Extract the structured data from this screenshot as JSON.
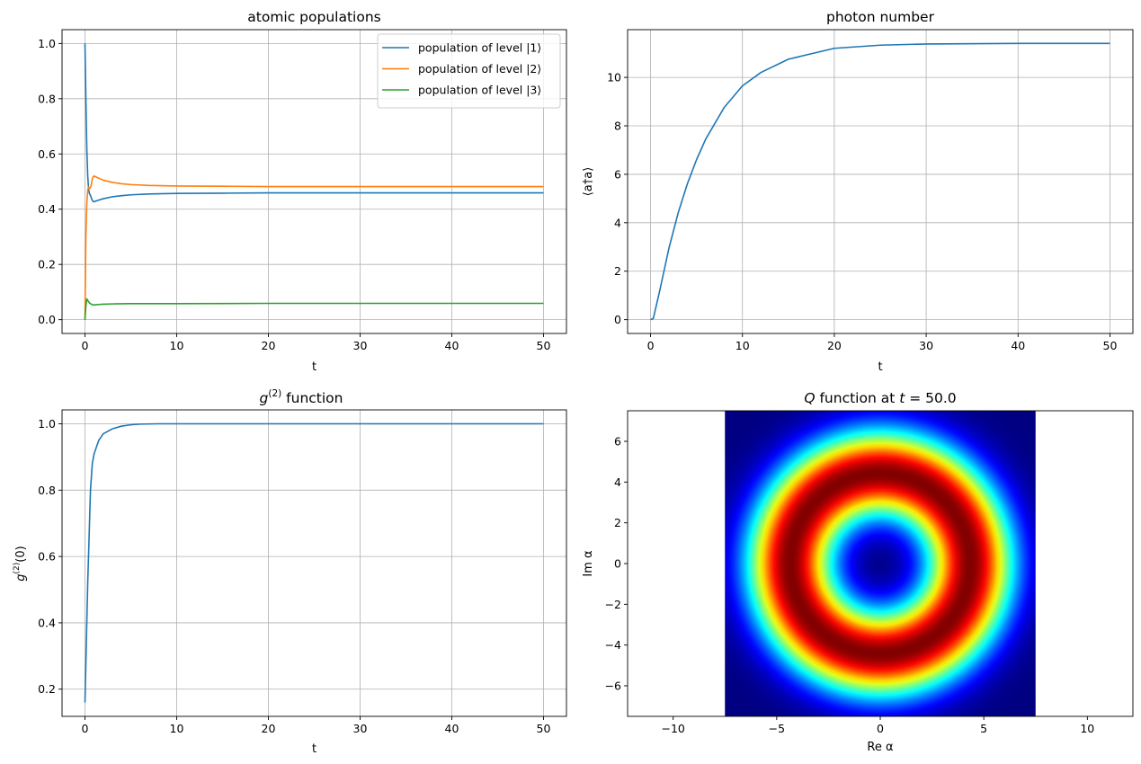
{
  "chart_data": [
    {
      "type": "line",
      "title": "atomic populations",
      "xlabel": "t",
      "ylabel": "",
      "xlim": [
        -2.5,
        52.5
      ],
      "ylim": [
        -0.05,
        1.05
      ],
      "xticks": [
        0,
        10,
        20,
        30,
        40,
        50
      ],
      "xtick_labels": [
        "0",
        "10",
        "20",
        "30",
        "40",
        "50"
      ],
      "yticks": [
        0.0,
        0.2,
        0.4,
        0.6,
        0.8,
        1.0
      ],
      "ytick_labels": [
        "0.0",
        "0.2",
        "0.4",
        "0.6",
        "0.8",
        "1.0"
      ],
      "grid": true,
      "legend_position": "top-right",
      "series": [
        {
          "name": "population of level |1⟩",
          "color": "#1f77b4",
          "x": [
            0,
            0.1,
            0.2,
            0.3,
            0.4,
            0.5,
            0.6,
            0.7,
            0.8,
            0.9,
            1.0,
            1.5,
            2,
            3,
            4,
            5,
            7,
            10,
            15,
            20,
            30,
            40,
            50
          ],
          "y": [
            1.0,
            0.8,
            0.62,
            0.52,
            0.47,
            0.455,
            0.45,
            0.44,
            0.432,
            0.428,
            0.427,
            0.433,
            0.438,
            0.445,
            0.449,
            0.452,
            0.455,
            0.457,
            0.458,
            0.459,
            0.459,
            0.459,
            0.459
          ]
        },
        {
          "name": "population of level |2⟩",
          "color": "#ff7f0e",
          "x": [
            0,
            0.05,
            0.1,
            0.2,
            0.3,
            0.4,
            0.5,
            0.6,
            0.7,
            0.8,
            0.9,
            1.0,
            1.5,
            2,
            3,
            4,
            5,
            7,
            10,
            15,
            20,
            30,
            40,
            50
          ],
          "y": [
            0.0,
            0.15,
            0.3,
            0.42,
            0.47,
            0.48,
            0.475,
            0.478,
            0.49,
            0.51,
            0.518,
            0.52,
            0.512,
            0.505,
            0.497,
            0.492,
            0.489,
            0.486,
            0.484,
            0.483,
            0.482,
            0.482,
            0.482,
            0.482
          ]
        },
        {
          "name": "population of level |3⟩",
          "color": "#2ca02c",
          "x": [
            0,
            0.1,
            0.2,
            0.3,
            0.5,
            0.7,
            0.9,
            1.2,
            1.5,
            2,
            3,
            5,
            10,
            20,
            30,
            40,
            50
          ],
          "y": [
            0.0,
            0.05,
            0.075,
            0.07,
            0.06,
            0.056,
            0.053,
            0.054,
            0.055,
            0.056,
            0.057,
            0.058,
            0.058,
            0.059,
            0.059,
            0.059,
            0.059
          ]
        }
      ]
    },
    {
      "type": "line",
      "title": "photon number",
      "xlabel": "t",
      "ylabel": "⟨a†a⟩",
      "xlim": [
        -2.5,
        52.5
      ],
      "ylim": [
        -0.57,
        11.97
      ],
      "xticks": [
        0,
        10,
        20,
        30,
        40,
        50
      ],
      "xtick_labels": [
        "0",
        "10",
        "20",
        "30",
        "40",
        "50"
      ],
      "yticks": [
        0,
        2,
        4,
        6,
        8,
        10
      ],
      "ytick_labels": [
        "0",
        "2",
        "4",
        "6",
        "8",
        "10"
      ],
      "grid": true,
      "series": [
        {
          "name": "⟨a†a⟩",
          "color": "#1f77b4",
          "x": [
            0,
            0.3,
            1,
            2,
            3,
            4,
            5,
            6,
            8,
            10,
            12,
            15,
            20,
            25,
            30,
            40,
            50
          ],
          "y": [
            0.0,
            0.05,
            1.2,
            2.95,
            4.4,
            5.6,
            6.6,
            7.45,
            8.75,
            9.65,
            10.2,
            10.75,
            11.2,
            11.33,
            11.38,
            11.4,
            11.4
          ]
        }
      ]
    },
    {
      "type": "line",
      "title": "g⁽²⁾ function",
      "xlabel": "t",
      "ylabel": "g⁽²⁾(0)",
      "xlim": [
        -2.5,
        52.5
      ],
      "ylim": [
        0.118,
        1.042
      ],
      "xticks": [
        0,
        10,
        20,
        30,
        40,
        50
      ],
      "xtick_labels": [
        "0",
        "10",
        "20",
        "30",
        "40",
        "50"
      ],
      "yticks": [
        0.2,
        0.4,
        0.6,
        0.8,
        1.0
      ],
      "ytick_labels": [
        "0.2",
        "0.4",
        "0.6",
        "0.8",
        "1.0"
      ],
      "grid": true,
      "series": [
        {
          "name": "g⁽²⁾(0)",
          "color": "#1f77b4",
          "x": [
            0,
            0.3,
            0.6,
            0.8,
            1.0,
            1.5,
            2,
            3,
            4,
            5,
            6,
            8,
            10,
            20,
            30,
            40,
            50
          ],
          "y": [
            0.16,
            0.52,
            0.8,
            0.88,
            0.91,
            0.95,
            0.97,
            0.985,
            0.993,
            0.997,
            0.999,
            1.0,
            1.0,
            1.0,
            1.0,
            1.0,
            1.0
          ]
        }
      ]
    },
    {
      "type": "heatmap",
      "title": "Q function at t = 50.0",
      "title_parts": {
        "Q": "Q",
        "rest": " function at ",
        "t": "t",
        "eq": " = 50.0"
      },
      "xlabel": "Re α",
      "ylabel": "Im α",
      "xlim": [
        -12.2,
        12.2
      ],
      "ylim": [
        -7.5,
        7.5
      ],
      "data_extent": [
        -7.5,
        7.5,
        -7.5,
        7.5
      ],
      "xticks": [
        -10,
        -5,
        0,
        5,
        10
      ],
      "xtick_labels": [
        "−10",
        "−5",
        "0",
        "5",
        "10"
      ],
      "yticks": [
        -6,
        -4,
        -2,
        0,
        2,
        4,
        6
      ],
      "ytick_labels": [
        "−6",
        "−4",
        "−2",
        "0",
        "2",
        "4",
        "6"
      ],
      "grid": false,
      "colormap": "jet",
      "ring_radius": 4.35,
      "ring_width": 1.45
    }
  ]
}
